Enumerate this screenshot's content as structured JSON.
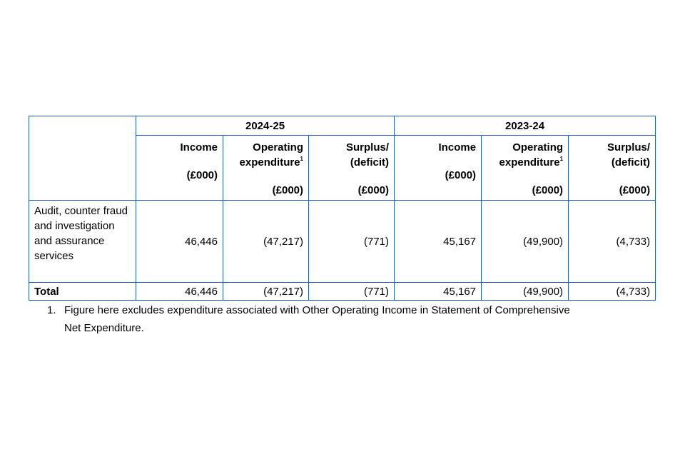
{
  "table": {
    "years": [
      "2024-25",
      "2023-24"
    ],
    "columns": {
      "income": "Income",
      "opex_line1": "Operating",
      "opex_line2": "expenditure",
      "opex_note": "1",
      "surplus_line1": "Surplus/",
      "surplus_line2": "(deficit)",
      "unit": "(£000)"
    },
    "rows": [
      {
        "label": "Audit, counter fraud and investigation and assurance services",
        "values": [
          "46,446",
          "(47,217)",
          "(771)",
          "45,167",
          "(49,900)",
          "(4,733)"
        ]
      }
    ],
    "total": {
      "label": "Total",
      "values": [
        "46,446",
        "(47,217)",
        "(771)",
        "45,167",
        "(49,900)",
        "(4,733)"
      ]
    }
  },
  "footnote": {
    "number": "1.",
    "text": "Figure here excludes expenditure associated with Other Operating Income in Statement of Comprehensive Net Expenditure."
  }
}
